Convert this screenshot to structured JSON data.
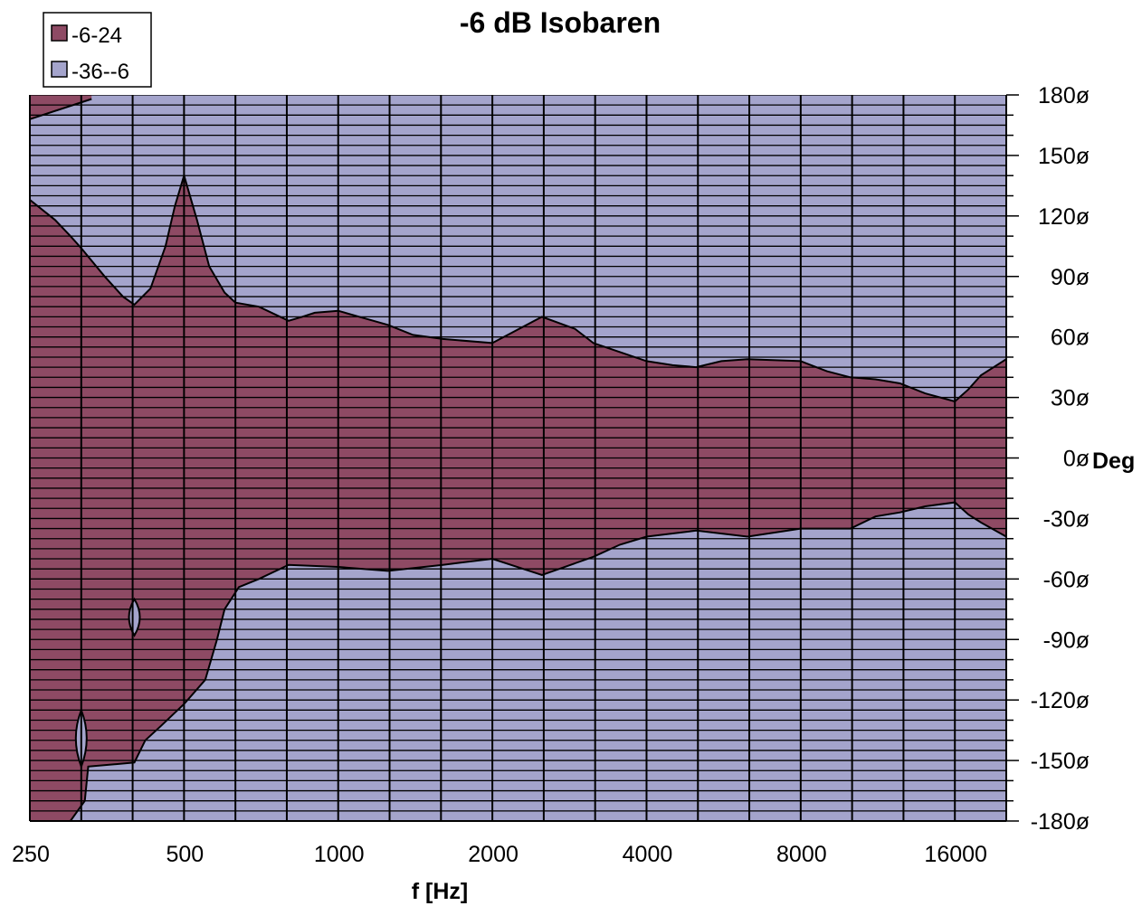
{
  "chart_data": {
    "type": "area",
    "title": "-6 dB Isobaren",
    "xlabel": "f [Hz]",
    "ylabel": "Deg",
    "x_scale": "log2",
    "xlim": [
      250,
      20160
    ],
    "ylim": [
      -180,
      180
    ],
    "x_tick_labels": [
      "250",
      "500",
      "1000",
      "2000",
      "4000",
      "8000",
      "16000"
    ],
    "x_tick_values": [
      250,
      500,
      1000,
      2000,
      4000,
      8000,
      16000
    ],
    "y_tick_labels": [
      "180ø",
      "150ø",
      "120ø",
      "90ø",
      "60ø",
      "30ø",
      "0ø",
      "-30ø",
      "-60ø",
      "-90ø",
      "-120ø",
      "-150ø",
      "-180ø"
    ],
    "y_tick_values": [
      180,
      150,
      120,
      90,
      60,
      30,
      0,
      -30,
      -60,
      -90,
      -120,
      -150,
      -180
    ],
    "grid": "vertical lines at third-octave steps",
    "legend": {
      "placement": "top-left",
      "entries": [
        {
          "label": "-6-24",
          "color": "#8e4a64"
        },
        {
          "label": "-36--6",
          "color": "#a4a4cc"
        }
      ]
    },
    "series": [
      {
        "name": "-6-24",
        "color": "#8e4a64",
        "upper_boundary": [
          [
            250,
            128
          ],
          [
            280,
            118
          ],
          [
            300,
            110
          ],
          [
            315,
            104
          ],
          [
            350,
            90
          ],
          [
            380,
            80
          ],
          [
            400,
            76
          ],
          [
            430,
            84
          ],
          [
            460,
            105
          ],
          [
            480,
            125
          ],
          [
            500,
            140
          ],
          [
            530,
            118
          ],
          [
            560,
            95
          ],
          [
            600,
            82
          ],
          [
            630,
            77
          ],
          [
            700,
            75
          ],
          [
            800,
            68
          ],
          [
            850,
            70
          ],
          [
            900,
            72
          ],
          [
            1000,
            73
          ],
          [
            1100,
            70
          ],
          [
            1250,
            66
          ],
          [
            1400,
            61
          ],
          [
            1600,
            59
          ],
          [
            2000,
            57
          ],
          [
            2500,
            70
          ],
          [
            2900,
            64
          ],
          [
            3150,
            57
          ],
          [
            4000,
            48
          ],
          [
            4500,
            46
          ],
          [
            5000,
            45
          ],
          [
            5600,
            48
          ],
          [
            6300,
            49
          ],
          [
            8000,
            48
          ],
          [
            9000,
            43
          ],
          [
            10000,
            40
          ],
          [
            11200,
            39
          ],
          [
            12500,
            37
          ],
          [
            14000,
            32
          ],
          [
            16000,
            28
          ],
          [
            17000,
            34
          ],
          [
            18000,
            41
          ],
          [
            20160,
            49
          ]
        ],
        "lower_boundary": [
          [
            250,
            -180
          ],
          [
            300,
            -180
          ],
          [
            320,
            -170
          ],
          [
            325,
            -153
          ],
          [
            400,
            -151
          ],
          [
            420,
            -140
          ],
          [
            450,
            -133
          ],
          [
            500,
            -122
          ],
          [
            550,
            -110
          ],
          [
            580,
            -90
          ],
          [
            600,
            -75
          ],
          [
            640,
            -64
          ],
          [
            700,
            -60
          ],
          [
            800,
            -53
          ],
          [
            1000,
            -54
          ],
          [
            1250,
            -56
          ],
          [
            1600,
            -53
          ],
          [
            2000,
            -50
          ],
          [
            2500,
            -58
          ],
          [
            3150,
            -49
          ],
          [
            3550,
            -43
          ],
          [
            4000,
            -39
          ],
          [
            5000,
            -36
          ],
          [
            6300,
            -39
          ],
          [
            8000,
            -35
          ],
          [
            10000,
            -35
          ],
          [
            11200,
            -29
          ],
          [
            12500,
            -27
          ],
          [
            14000,
            -24
          ],
          [
            16000,
            -22
          ],
          [
            17000,
            -28
          ],
          [
            18000,
            -32
          ],
          [
            20160,
            -39
          ]
        ],
        "extra_regions": [
          {
            "upper_boundary": [
              [
                250,
                180
              ],
              [
                330,
                180
              ]
            ],
            "lower_boundary": [
              [
                250,
                168
              ],
              [
                330,
                178
              ]
            ]
          }
        ]
      },
      {
        "name": "-36--6",
        "color": "#a4a4cc",
        "islands": [
          {
            "center": [
              400,
              -78
            ],
            "extent_deg": [
              -88,
              -70
            ]
          },
          {
            "center": [
              315,
              -138
            ],
            "extent_deg": [
              -153,
              -125
            ]
          }
        ]
      }
    ]
  }
}
